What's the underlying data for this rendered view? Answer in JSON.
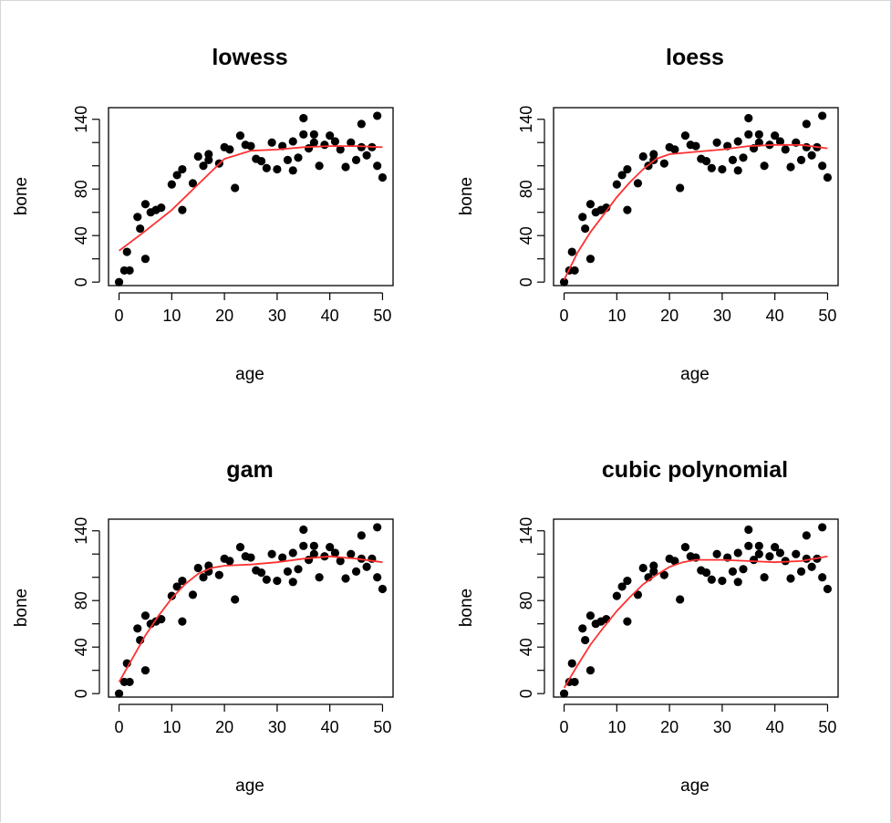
{
  "colors": {
    "points": "#000000",
    "fit_line": "#ff3030",
    "axis": "#000000",
    "background": "#ffffff"
  },
  "chart_data": [
    {
      "type": "scatter",
      "title": "lowess",
      "xlabel": "age",
      "ylabel": "bone",
      "xlim": [
        -2,
        52
      ],
      "ylim": [
        -3,
        150
      ],
      "xticks": [
        0,
        10,
        20,
        30,
        40,
        50
      ],
      "yticks": [
        0,
        40,
        80,
        140
      ],
      "points": [
        [
          0,
          0
        ],
        [
          1,
          10
        ],
        [
          1.5,
          26
        ],
        [
          2,
          10
        ],
        [
          3.5,
          56
        ],
        [
          4,
          46
        ],
        [
          5,
          20
        ],
        [
          5,
          67
        ],
        [
          6,
          60
        ],
        [
          7,
          62
        ],
        [
          8,
          64
        ],
        [
          10,
          84
        ],
        [
          11,
          92
        ],
        [
          12,
          62
        ],
        [
          12,
          97
        ],
        [
          14,
          85
        ],
        [
          15,
          108
        ],
        [
          16,
          100
        ],
        [
          17,
          110
        ],
        [
          17,
          105
        ],
        [
          19,
          102
        ],
        [
          20,
          116
        ],
        [
          21,
          114
        ],
        [
          22,
          81
        ],
        [
          23,
          126
        ],
        [
          24,
          118
        ],
        [
          25,
          117
        ],
        [
          26,
          106
        ],
        [
          27,
          104
        ],
        [
          28,
          98
        ],
        [
          29,
          120
        ],
        [
          30,
          97
        ],
        [
          31,
          117
        ],
        [
          32,
          105
        ],
        [
          33,
          96
        ],
        [
          33,
          121
        ],
        [
          34,
          107
        ],
        [
          35,
          127
        ],
        [
          35,
          141
        ],
        [
          36,
          115
        ],
        [
          37,
          120
        ],
        [
          37,
          127
        ],
        [
          38,
          100
        ],
        [
          39,
          118
        ],
        [
          40,
          126
        ],
        [
          41,
          121
        ],
        [
          42,
          114
        ],
        [
          43,
          99
        ],
        [
          44,
          120
        ],
        [
          45,
          105
        ],
        [
          46,
          116
        ],
        [
          46,
          136
        ],
        [
          47,
          109
        ],
        [
          48,
          116
        ],
        [
          49,
          143
        ],
        [
          49,
          100
        ],
        [
          50,
          90
        ]
      ],
      "fit": [
        [
          0,
          27
        ],
        [
          5,
          44
        ],
        [
          10,
          62
        ],
        [
          15,
          84
        ],
        [
          20,
          106
        ],
        [
          25,
          113
        ],
        [
          30,
          114
        ],
        [
          35,
          116
        ],
        [
          40,
          117
        ],
        [
          45,
          117
        ],
        [
          50,
          116
        ]
      ]
    },
    {
      "type": "scatter",
      "title": "loess",
      "xlabel": "age",
      "ylabel": "bone",
      "xlim": [
        -2,
        52
      ],
      "ylim": [
        -3,
        150
      ],
      "xticks": [
        0,
        10,
        20,
        30,
        40,
        50
      ],
      "yticks": [
        0,
        40,
        80,
        140
      ],
      "points": [
        [
          0,
          0
        ],
        [
          1,
          10
        ],
        [
          1.5,
          26
        ],
        [
          2,
          10
        ],
        [
          3.5,
          56
        ],
        [
          4,
          46
        ],
        [
          5,
          20
        ],
        [
          5,
          67
        ],
        [
          6,
          60
        ],
        [
          7,
          62
        ],
        [
          8,
          64
        ],
        [
          10,
          84
        ],
        [
          11,
          92
        ],
        [
          12,
          62
        ],
        [
          12,
          97
        ],
        [
          14,
          85
        ],
        [
          15,
          108
        ],
        [
          16,
          100
        ],
        [
          17,
          110
        ],
        [
          17,
          105
        ],
        [
          19,
          102
        ],
        [
          20,
          116
        ],
        [
          21,
          114
        ],
        [
          22,
          81
        ],
        [
          23,
          126
        ],
        [
          24,
          118
        ],
        [
          25,
          117
        ],
        [
          26,
          106
        ],
        [
          27,
          104
        ],
        [
          28,
          98
        ],
        [
          29,
          120
        ],
        [
          30,
          97
        ],
        [
          31,
          117
        ],
        [
          32,
          105
        ],
        [
          33,
          96
        ],
        [
          33,
          121
        ],
        [
          34,
          107
        ],
        [
          35,
          127
        ],
        [
          35,
          141
        ],
        [
          36,
          115
        ],
        [
          37,
          120
        ],
        [
          37,
          127
        ],
        [
          38,
          100
        ],
        [
          39,
          118
        ],
        [
          40,
          126
        ],
        [
          41,
          121
        ],
        [
          42,
          114
        ],
        [
          43,
          99
        ],
        [
          44,
          120
        ],
        [
          45,
          105
        ],
        [
          46,
          116
        ],
        [
          46,
          136
        ],
        [
          47,
          109
        ],
        [
          48,
          116
        ],
        [
          49,
          143
        ],
        [
          49,
          100
        ],
        [
          50,
          90
        ]
      ],
      "fit": [
        [
          0,
          2
        ],
        [
          2.5,
          25
        ],
        [
          5,
          43
        ],
        [
          7.5,
          58
        ],
        [
          10,
          73
        ],
        [
          12.5,
          86
        ],
        [
          15,
          97
        ],
        [
          17.5,
          106
        ],
        [
          20,
          110
        ],
        [
          25,
          112
        ],
        [
          30,
          114
        ],
        [
          35,
          117
        ],
        [
          40,
          118
        ],
        [
          45,
          118
        ],
        [
          50,
          115
        ]
      ]
    },
    {
      "type": "scatter",
      "title": "gam",
      "xlabel": "age",
      "ylabel": "bone",
      "xlim": [
        -2,
        52
      ],
      "ylim": [
        -3,
        150
      ],
      "xticks": [
        0,
        10,
        20,
        30,
        40,
        50
      ],
      "yticks": [
        0,
        40,
        80,
        140
      ],
      "points": [
        [
          0,
          0
        ],
        [
          1,
          10
        ],
        [
          1.5,
          26
        ],
        [
          2,
          10
        ],
        [
          3.5,
          56
        ],
        [
          4,
          46
        ],
        [
          5,
          20
        ],
        [
          5,
          67
        ],
        [
          6,
          60
        ],
        [
          7,
          62
        ],
        [
          8,
          64
        ],
        [
          10,
          84
        ],
        [
          11,
          92
        ],
        [
          12,
          62
        ],
        [
          12,
          97
        ],
        [
          14,
          85
        ],
        [
          15,
          108
        ],
        [
          16,
          100
        ],
        [
          17,
          110
        ],
        [
          17,
          105
        ],
        [
          19,
          102
        ],
        [
          20,
          116
        ],
        [
          21,
          114
        ],
        [
          22,
          81
        ],
        [
          23,
          126
        ],
        [
          24,
          118
        ],
        [
          25,
          117
        ],
        [
          26,
          106
        ],
        [
          27,
          104
        ],
        [
          28,
          98
        ],
        [
          29,
          120
        ],
        [
          30,
          97
        ],
        [
          31,
          117
        ],
        [
          32,
          105
        ],
        [
          33,
          96
        ],
        [
          33,
          121
        ],
        [
          34,
          107
        ],
        [
          35,
          127
        ],
        [
          35,
          141
        ],
        [
          36,
          115
        ],
        [
          37,
          120
        ],
        [
          37,
          127
        ],
        [
          38,
          100
        ],
        [
          39,
          118
        ],
        [
          40,
          126
        ],
        [
          41,
          121
        ],
        [
          42,
          114
        ],
        [
          43,
          99
        ],
        [
          44,
          120
        ],
        [
          45,
          105
        ],
        [
          46,
          116
        ],
        [
          46,
          136
        ],
        [
          47,
          109
        ],
        [
          48,
          116
        ],
        [
          49,
          143
        ],
        [
          49,
          100
        ],
        [
          50,
          90
        ]
      ],
      "fit": [
        [
          0,
          10
        ],
        [
          2.5,
          30
        ],
        [
          5,
          50
        ],
        [
          7.5,
          67
        ],
        [
          10,
          82
        ],
        [
          12.5,
          94
        ],
        [
          15,
          103
        ],
        [
          17.5,
          108
        ],
        [
          20,
          110
        ],
        [
          25,
          111
        ],
        [
          30,
          113
        ],
        [
          35,
          116
        ],
        [
          40,
          118
        ],
        [
          45,
          116
        ],
        [
          50,
          113
        ]
      ]
    },
    {
      "type": "scatter",
      "title": "cubic polynomial",
      "xlabel": "age",
      "ylabel": "bone",
      "xlim": [
        -2,
        52
      ],
      "ylim": [
        -3,
        150
      ],
      "xticks": [
        0,
        10,
        20,
        30,
        40,
        50
      ],
      "yticks": [
        0,
        40,
        80,
        140
      ],
      "points": [
        [
          0,
          0
        ],
        [
          1,
          10
        ],
        [
          1.5,
          26
        ],
        [
          2,
          10
        ],
        [
          3.5,
          56
        ],
        [
          4,
          46
        ],
        [
          5,
          20
        ],
        [
          5,
          67
        ],
        [
          6,
          60
        ],
        [
          7,
          62
        ],
        [
          8,
          64
        ],
        [
          10,
          84
        ],
        [
          11,
          92
        ],
        [
          12,
          62
        ],
        [
          12,
          97
        ],
        [
          14,
          85
        ],
        [
          15,
          108
        ],
        [
          16,
          100
        ],
        [
          17,
          110
        ],
        [
          17,
          105
        ],
        [
          19,
          102
        ],
        [
          20,
          116
        ],
        [
          21,
          114
        ],
        [
          22,
          81
        ],
        [
          23,
          126
        ],
        [
          24,
          118
        ],
        [
          25,
          117
        ],
        [
          26,
          106
        ],
        [
          27,
          104
        ],
        [
          28,
          98
        ],
        [
          29,
          120
        ],
        [
          30,
          97
        ],
        [
          31,
          117
        ],
        [
          32,
          105
        ],
        [
          33,
          96
        ],
        [
          33,
          121
        ],
        [
          34,
          107
        ],
        [
          35,
          127
        ],
        [
          35,
          141
        ],
        [
          36,
          115
        ],
        [
          37,
          120
        ],
        [
          37,
          127
        ],
        [
          38,
          100
        ],
        [
          39,
          118
        ],
        [
          40,
          126
        ],
        [
          41,
          121
        ],
        [
          42,
          114
        ],
        [
          43,
          99
        ],
        [
          44,
          120
        ],
        [
          45,
          105
        ],
        [
          46,
          116
        ],
        [
          46,
          136
        ],
        [
          47,
          109
        ],
        [
          48,
          116
        ],
        [
          49,
          143
        ],
        [
          49,
          100
        ],
        [
          50,
          90
        ]
      ],
      "fit": [
        [
          0,
          5
        ],
        [
          2.5,
          24
        ],
        [
          5,
          42
        ],
        [
          7.5,
          57
        ],
        [
          10,
          71
        ],
        [
          12.5,
          83
        ],
        [
          15,
          94
        ],
        [
          17.5,
          102
        ],
        [
          20,
          109
        ],
        [
          22.5,
          113
        ],
        [
          25,
          115
        ],
        [
          30,
          115
        ],
        [
          35,
          114
        ],
        [
          40,
          113
        ],
        [
          45,
          114
        ],
        [
          50,
          118
        ]
      ]
    }
  ]
}
